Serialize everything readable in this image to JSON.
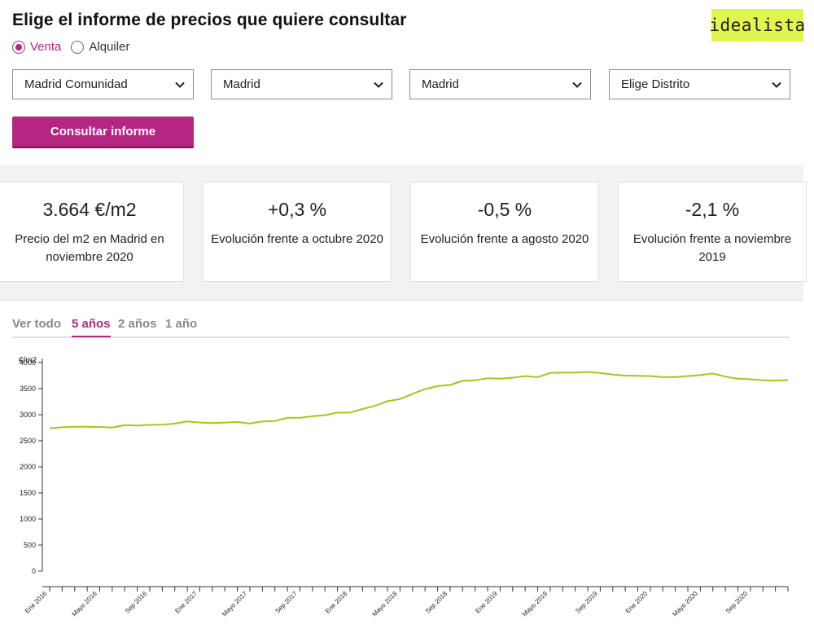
{
  "header": {
    "title": "Elige el informe de precios que quiere consultar",
    "logo_text": "idealista"
  },
  "operation": {
    "options": [
      "Venta",
      "Alquiler"
    ],
    "selected": "Venta"
  },
  "filters": [
    {
      "value": "Madrid Comunidad"
    },
    {
      "value": "Madrid"
    },
    {
      "value": "Madrid"
    },
    {
      "value": "Elige Distrito"
    }
  ],
  "consult_button": "Consultar informe",
  "stats": [
    {
      "value": "3.664 €/m2",
      "label": "Precio del m2 en Madrid en noviembre 2020"
    },
    {
      "value": "+0,3 %",
      "label": "Evolución frente a octubre 2020"
    },
    {
      "value": "-0,5 %",
      "label": "Evolución frente a agosto 2020"
    },
    {
      "value": "-2,1 %",
      "label": "Evolución frente a noviembre 2019"
    }
  ],
  "tabs": [
    "Ver todo",
    "5 años",
    "2 años",
    "1 año"
  ],
  "active_tab": "5 años",
  "colors": {
    "accent": "#b52582",
    "line": "#a5c61a",
    "logo_bg": "#e1f44f"
  },
  "chart_data": {
    "type": "line",
    "ylabel": "€/m2",
    "ylim": [
      0,
      4000
    ],
    "yticks": [
      0,
      500,
      1000,
      1500,
      2000,
      2500,
      3000,
      3500,
      4000
    ],
    "x_tick_labels": [
      "Ene 2016",
      "Mayo 2016",
      "Sep 2016",
      "Ene 2017",
      "Mayo 2017",
      "Sep 2017",
      "Ene 2018",
      "Mayo 2018",
      "Sep 2018",
      "Ene 2019",
      "Mayo 2019",
      "Sep 2019",
      "Ene 2020",
      "Mayo 2020",
      "Sep 2020"
    ],
    "series": [
      {
        "name": "Madrid",
        "values": [
          2740,
          2760,
          2770,
          2770,
          2765,
          2755,
          2800,
          2790,
          2805,
          2810,
          2830,
          2870,
          2850,
          2840,
          2850,
          2860,
          2830,
          2870,
          2880,
          2940,
          2940,
          2970,
          2990,
          3040,
          3040,
          3110,
          3170,
          3260,
          3300,
          3400,
          3490,
          3550,
          3570,
          3650,
          3660,
          3700,
          3690,
          3710,
          3740,
          3720,
          3800,
          3810,
          3810,
          3820,
          3800,
          3770,
          3750,
          3745,
          3740,
          3720,
          3720,
          3740,
          3760,
          3790,
          3730,
          3690,
          3680,
          3660,
          3655,
          3664
        ]
      }
    ]
  }
}
